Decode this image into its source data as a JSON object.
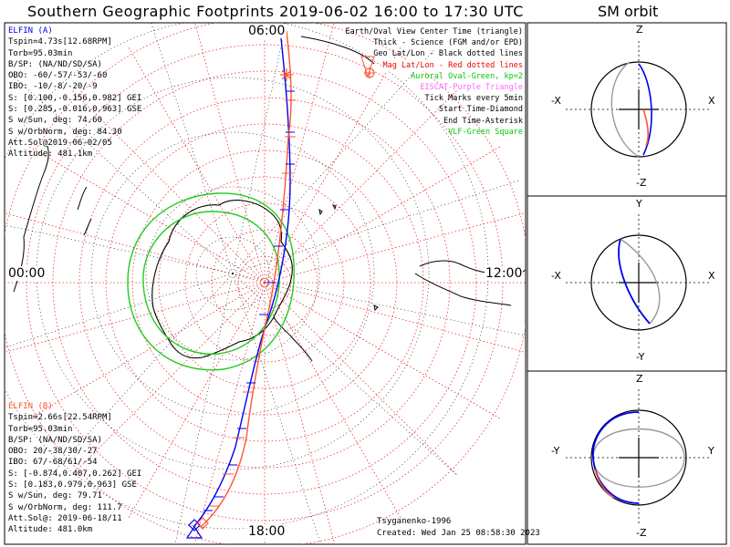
{
  "header": {
    "title": "Southern Geographic Footprints 2019-06-02 16:00 to 17:30 UTC",
    "side_title": "SM orbit"
  },
  "elfin_a": {
    "name": "ELFIN (A)",
    "lines": [
      "Tspin=4.73s[12.68RPM]",
      "Torb=95.03min",
      "B/SP: (NA/ND/SD/SA)",
      "OBO: -60/-57/-53/-60",
      "IBO: -10/-8/-20/-9",
      "S: [0.100,-0.156,0.982] GEI",
      "S: [0.285,-0.016,0.963] GSE",
      "S w/Sun, deg: 74.60",
      "S w/OrbNorm, deg: 84.30",
      "Att.Sol@2019-06-02/05",
      "Altitude: 481.1km"
    ],
    "color": "#0000ee"
  },
  "elfin_b": {
    "name": "ELFIN (B)",
    "lines": [
      "Tspin=2.66s[22.54RPM]",
      "Torb=95.03min",
      "B/SP: (NA/ND/SD/SA)",
      "OBO: 20/-38/30/-27",
      "IBO: 67/-68/61/-54",
      "S: [-0.874,0.407,0.262] GEI",
      "S: [0.183,0.979,0.963] GSE",
      "S w/Sun, deg: 79.71",
      "S w/OrbNorm, deg: 111.7",
      "Att.Sol@: 2019-06-18/11",
      "Altitude: 481.0km"
    ],
    "color": "#ff5533"
  },
  "legend": [
    {
      "text": "Earth/Oval View Center Time (triangle)",
      "color": "#000000"
    },
    {
      "text": "Thick - Science (FGM and/or EPD)",
      "color": "#000000"
    },
    {
      "text": "Geo Lat/Lon - Black dotted lines",
      "color": "#000000"
    },
    {
      "text": "Mag Lat/Lon - Red dotted lines",
      "color": "#ee0000",
      "boxed": true
    },
    {
      "text": "Auroral Oval-Green, kp=2",
      "color": "#00cc00"
    },
    {
      "text": "EISCAT-Purple Triangle",
      "color": "#ff66ff"
    },
    {
      "text": "Tick Marks every 5min",
      "color": "#000000"
    },
    {
      "text": "Start Time-Diamond",
      "color": "#000000"
    },
    {
      "text": "End Time-Asterisk",
      "color": "#000000"
    },
    {
      "text": "VLF-Green Square",
      "color": "#00cc00"
    }
  ],
  "map_labels": {
    "top": "06:00",
    "left": "00:00",
    "right": "12:00",
    "bottom": "18:00"
  },
  "footer": {
    "model": "Tsyganenko-1996",
    "created": "Created: Wed Jan 25 08:58:30 2023"
  },
  "panels": [
    {
      "top": "Z",
      "bottom": "-Z",
      "left": "-X",
      "right": "X"
    },
    {
      "top": "Y",
      "bottom": "-Y",
      "left": "-X",
      "right": "X"
    },
    {
      "top": "Z",
      "bottom": "-Z",
      "left": "-Y",
      "right": "Y"
    }
  ],
  "colors": {
    "elfin_a": "#0000ee",
    "elfin_b": "#ff5533",
    "auroral_oval": "#22cc22",
    "mag_grid": "#ee3333",
    "geo_grid": "#000000"
  }
}
